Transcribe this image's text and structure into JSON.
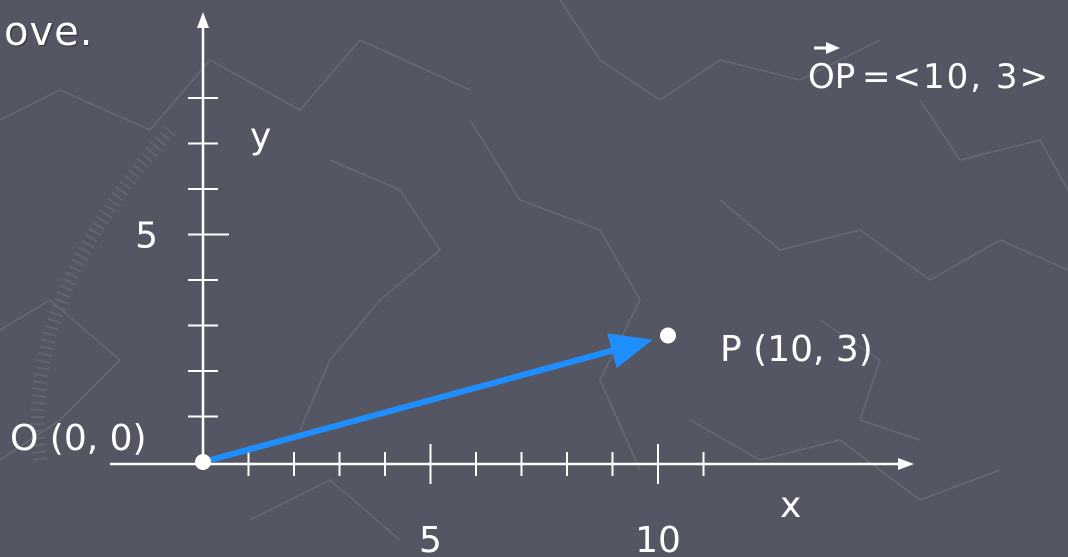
{
  "colors": {
    "background": "#545763",
    "texture": "#6a6d79",
    "axis": "#ffffff",
    "vector": "#1f8fff",
    "text": "#ffffff"
  },
  "header_text": "ove.",
  "axes": {
    "x_label": "x",
    "y_label": "y",
    "x_max_ticks": 11,
    "y_max_ticks": 8
  },
  "x_tick_labels": [
    {
      "value": 5,
      "text": "5"
    },
    {
      "value": 10,
      "text": "10"
    }
  ],
  "y_tick_labels": [
    {
      "value": 5,
      "text": "5"
    }
  ],
  "points": {
    "origin": {
      "label": "O (0, 0)",
      "x": 0,
      "y": 0
    },
    "P": {
      "label": "P (10, 3)",
      "x": 10,
      "y": 3
    }
  },
  "vector_notation": {
    "name": "OP",
    "components": "=<10, 3>"
  }
}
